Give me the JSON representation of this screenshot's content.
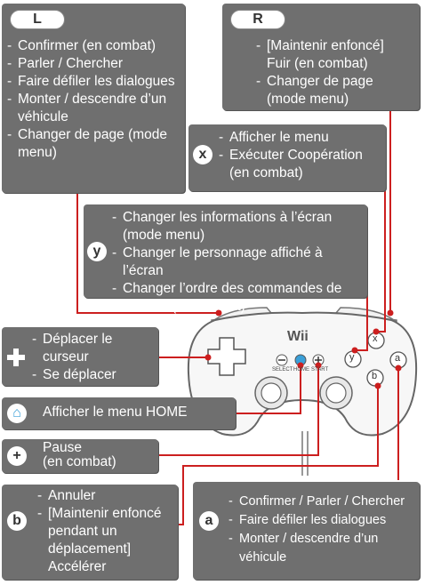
{
  "L": {
    "button": "L",
    "items": [
      "Confirmer (en combat)",
      "Parler / Chercher",
      "Faire défiler les dialogues",
      "Monter / descendre d’un véhicule",
      "Changer de page (mode menu)"
    ]
  },
  "R": {
    "button": "R",
    "items": [
      "[Maintenir enfoncé] Fuir (en combat)",
      "Changer de page (mode menu)"
    ]
  },
  "X": {
    "button": "x",
    "items": [
      "Afficher le menu",
      "Exécuter Coopération (en combat)"
    ]
  },
  "Y": {
    "button": "y",
    "items": [
      "Changer les informations à l’écran (mode menu)",
      "Changer le personnage affiché à l’écran",
      "Changer l’ordre des commandes de combat (en combat)"
    ]
  },
  "dpad": {
    "items": [
      "Déplacer le curseur",
      "Se déplacer"
    ]
  },
  "home": {
    "label": "Afficher le menu HOME"
  },
  "plus": {
    "label": "Pause\n(en combat)"
  },
  "B": {
    "button": "b",
    "items": [
      "Annuler",
      "[Maintenir enfoncé pendant un déplacement] Accélérer"
    ]
  },
  "A": {
    "button": "a",
    "items": [
      "Confirmer / Parler / Chercher",
      "Faire défiler les dialogues",
      "Monter / descendre d’un véhicule"
    ]
  },
  "controller": {
    "logo": "Wii",
    "select": "SELECT",
    "home": "HOME",
    "start": "START",
    "btn_x": "x",
    "btn_y": "y",
    "btn_a": "a",
    "btn_b": "b"
  },
  "colors": {
    "panel": "#6f6f6f",
    "connector": "#cc1f1f"
  }
}
